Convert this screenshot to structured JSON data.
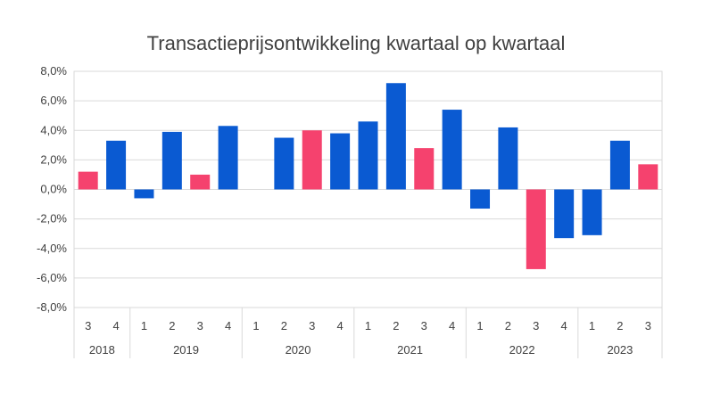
{
  "chart_data": {
    "type": "bar",
    "title": "Transactieprijsontwikkeling kwartaal op kwartaal",
    "xlabel": "",
    "ylabel": "",
    "ylim": [
      -8,
      8
    ],
    "y_ticks": [
      8,
      6,
      4,
      2,
      0,
      -2,
      -4,
      -6,
      -8
    ],
    "y_tick_labels": [
      "8,0%",
      "6,0%",
      "4,0%",
      "2,0%",
      "0,0%",
      "-2,0%",
      "-4,0%",
      "-6,0%",
      "-8,0%"
    ],
    "grid": true,
    "legend": "none",
    "colors": {
      "blue": "#0A5AD2",
      "pink": "#F5426E"
    },
    "categories": [
      "3",
      "4",
      "1",
      "2",
      "3",
      "4",
      "1",
      "2",
      "3",
      "4",
      "1",
      "2",
      "3",
      "4",
      "1",
      "2",
      "3",
      "4",
      "1",
      "2",
      "3"
    ],
    "groups": [
      {
        "label": "2018",
        "count": 2
      },
      {
        "label": "2019",
        "count": 4
      },
      {
        "label": "2020",
        "count": 4
      },
      {
        "label": "2021",
        "count": 4
      },
      {
        "label": "2022",
        "count": 4
      },
      {
        "label": "2023",
        "count": 3
      }
    ],
    "values": [
      1.2,
      3.3,
      -0.6,
      3.9,
      1.0,
      4.3,
      0,
      3.5,
      4.0,
      3.8,
      4.6,
      7.2,
      2.8,
      5.4,
      -1.3,
      4.2,
      -5.4,
      -3.3,
      -3.1,
      3.3,
      1.7
    ],
    "bar_colors": [
      "pink",
      "blue",
      "blue",
      "blue",
      "pink",
      "blue",
      "blue",
      "blue",
      "pink",
      "blue",
      "blue",
      "blue",
      "pink",
      "blue",
      "blue",
      "blue",
      "pink",
      "blue",
      "blue",
      "blue",
      "pink"
    ]
  }
}
